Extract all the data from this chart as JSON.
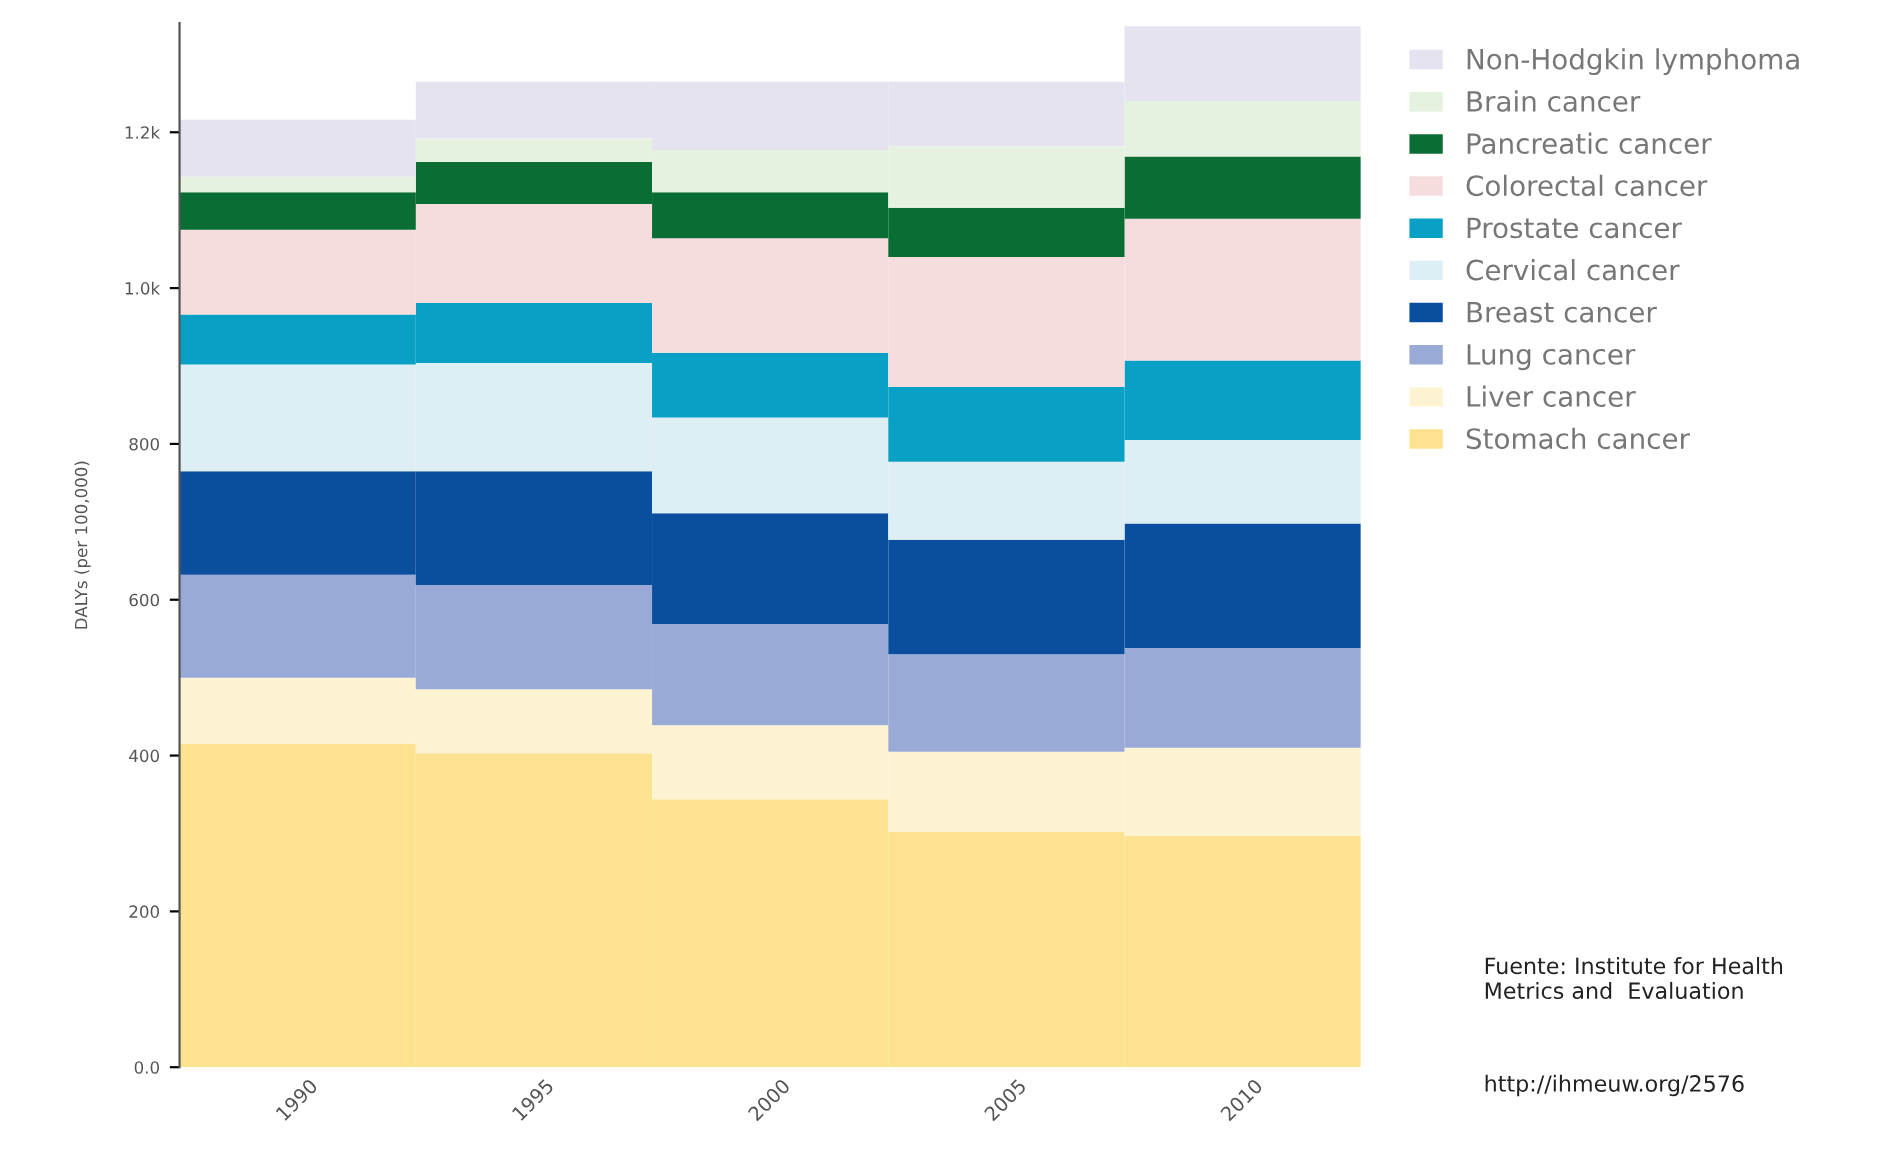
{
  "chart_data": {
    "type": "bar",
    "stacked": true,
    "ylabel": "DALYs (per 100,000)",
    "categories": [
      "1990",
      "1995",
      "2000",
      "2005",
      "2010"
    ],
    "series": [
      {
        "name": "Stomach cancer",
        "color": "#fde38f",
        "values": [
          415,
          403,
          344,
          302,
          297
        ]
      },
      {
        "name": "Liver cancer",
        "color": "#fdf3d3",
        "values": [
          85,
          82,
          95,
          103,
          113
        ]
      },
      {
        "name": "Lung cancer",
        "color": "#9aaad6",
        "values": [
          132,
          134,
          130,
          125,
          128
        ]
      },
      {
        "name": "Breast cancer",
        "color": "#0a4f9e",
        "values": [
          133,
          146,
          142,
          147,
          160
        ]
      },
      {
        "name": "Cervical cancer",
        "color": "#ddeef4",
        "values": [
          137,
          139,
          123,
          100,
          107
        ]
      },
      {
        "name": "Prostate cancer",
        "color": "#08a0c4",
        "values": [
          64,
          77,
          83,
          96,
          102
        ]
      },
      {
        "name": "Colorectal cancer",
        "color": "#f6dcdc",
        "values": [
          109,
          127,
          147,
          167,
          182
        ]
      },
      {
        "name": "Pancreatic cancer",
        "color": "#0a6e34",
        "values": [
          48,
          54,
          59,
          63,
          80
        ]
      },
      {
        "name": "Brain cancer",
        "color": "#e6f2e0",
        "values": [
          20,
          30,
          54,
          79,
          71
        ]
      },
      {
        "name": "Non-Hodgkin lymphoma",
        "color": "#e6e3f0",
        "values": [
          73,
          73,
          88,
          83,
          96
        ]
      }
    ],
    "ylim": [
      0,
      1340
    ],
    "yticks": [
      {
        "value": 0,
        "label": "0.0"
      },
      200,
      400,
      600,
      800,
      {
        "value": 1000,
        "label": "1.0k"
      },
      {
        "value": 1200,
        "label": "1.2k"
      }
    ],
    "grid": false,
    "legend": "right",
    "annotations": [
      "Fuente: Institute for Health\nMetrics and  Evaluation",
      "http://ihmeuw.org/2576"
    ]
  }
}
